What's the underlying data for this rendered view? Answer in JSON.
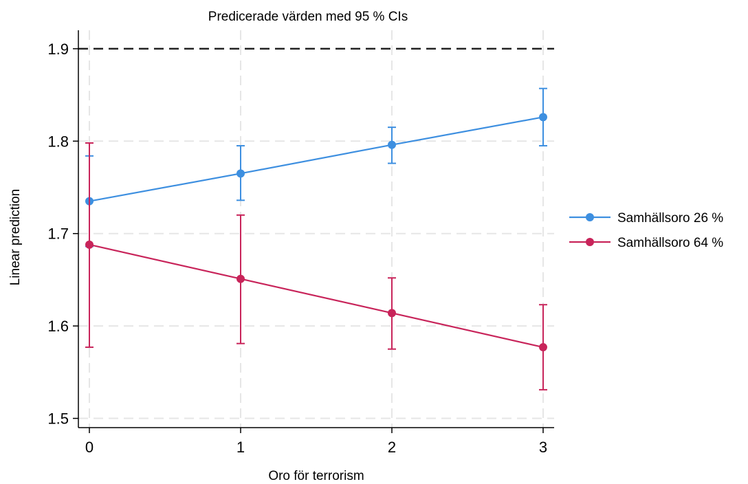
{
  "chart_data": {
    "type": "line",
    "title": "Predicerade värden med 95 % CIs",
    "xlabel": "Oro för terrorism",
    "ylabel": "Linear prediction",
    "x": [
      0,
      1,
      2,
      3
    ],
    "x_tick_labels": [
      "0",
      "1",
      "2",
      "3"
    ],
    "ylim": [
      1.49,
      1.92
    ],
    "y_ticks": [
      1.5,
      1.6,
      1.7,
      1.8,
      1.9
    ],
    "y_tick_labels": [
      "1.5",
      "1.6",
      "1.7",
      "1.8",
      "1.9"
    ],
    "grid": true,
    "reference_line": {
      "y": 1.9,
      "style": "dashed",
      "color": "#222222"
    },
    "legend_position": "right",
    "series": [
      {
        "name": "Samhällsoro 26 %",
        "color": "#3d8fe0",
        "values": [
          1.735,
          1.765,
          1.796,
          1.826
        ],
        "ci_low": [
          1.686,
          1.736,
          1.776,
          1.795
        ],
        "ci_high": [
          1.784,
          1.795,
          1.815,
          1.857
        ]
      },
      {
        "name": "Samhällsoro 64 %",
        "color": "#c8245a",
        "values": [
          1.688,
          1.651,
          1.614,
          1.577
        ],
        "ci_low": [
          1.577,
          1.581,
          1.575,
          1.531
        ],
        "ci_high": [
          1.798,
          1.72,
          1.652,
          1.623
        ]
      }
    ]
  }
}
